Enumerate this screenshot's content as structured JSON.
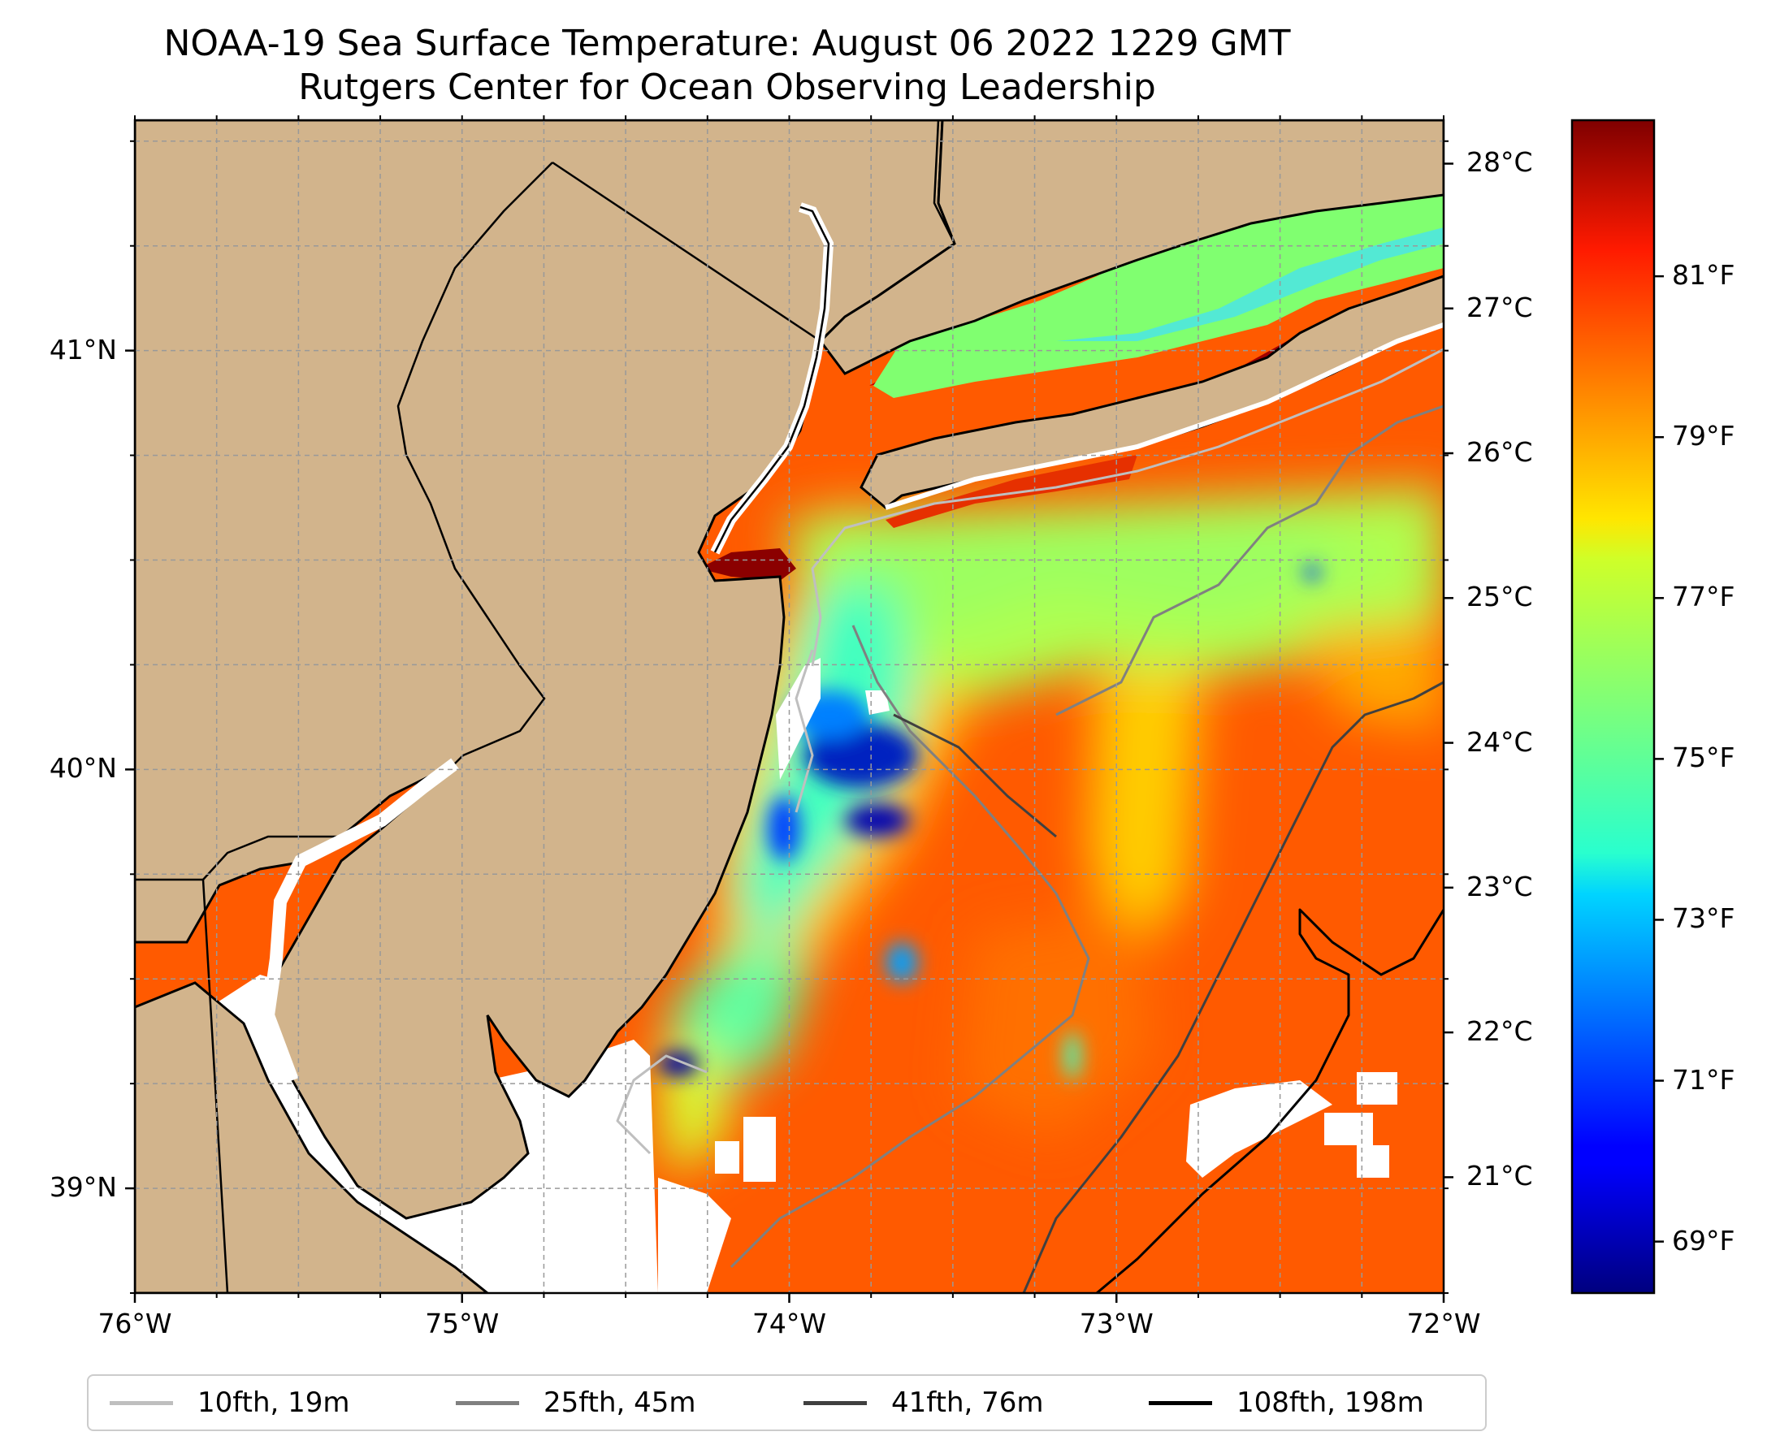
{
  "title": {
    "line1": "NOAA-19 Sea Surface Temperature: August 06 2022 1229 GMT",
    "line2": "Rutgers Center for Ocean Observing Leadership"
  },
  "map": {
    "extent": {
      "lon_min": -76.0,
      "lon_max": -72.0,
      "lat_min": 38.75,
      "lat_max": 41.55
    },
    "land_color": "#d2b48c",
    "no_data_color": "#ffffff",
    "gridlines": true,
    "lat_ticks": [
      {
        "value": 41,
        "label": "41°N"
      },
      {
        "value": 40,
        "label": "40°N"
      },
      {
        "value": 39,
        "label": "39°N"
      }
    ],
    "lon_ticks": [
      {
        "value": -76,
        "label": "76°W"
      },
      {
        "value": -75,
        "label": "75°W"
      },
      {
        "value": -74,
        "label": "74°W"
      },
      {
        "value": -73,
        "label": "73°W"
      },
      {
        "value": -72,
        "label": "72°W"
      }
    ]
  },
  "colorbar": {
    "colormap": "jet",
    "celsius_range": [
      20.2,
      28.3
    ],
    "celsius_ticks": [
      {
        "value": 21,
        "label": "21°C"
      },
      {
        "value": 22,
        "label": "22°C"
      },
      {
        "value": 23,
        "label": "23°C"
      },
      {
        "value": 24,
        "label": "24°C"
      },
      {
        "value": 25,
        "label": "25°C"
      },
      {
        "value": 26,
        "label": "26°C"
      },
      {
        "value": 27,
        "label": "27°C"
      },
      {
        "value": 28,
        "label": "28°C"
      }
    ],
    "fahrenheit_ticks": [
      {
        "value": 69,
        "label": "69°F"
      },
      {
        "value": 71,
        "label": "71°F"
      },
      {
        "value": 73,
        "label": "73°F"
      },
      {
        "value": 75,
        "label": "75°F"
      },
      {
        "value": 77,
        "label": "77°F"
      },
      {
        "value": 79,
        "label": "79°F"
      },
      {
        "value": 81,
        "label": "81°F"
      }
    ]
  },
  "legend": [
    {
      "label": "10fth, 19m",
      "color": "#bfbfbf"
    },
    {
      "label": "25fth, 45m",
      "color": "#808080"
    },
    {
      "label": "41fth, 76m",
      "color": "#404040"
    },
    {
      "label": "108fth, 198m",
      "color": "#000000"
    }
  ]
}
